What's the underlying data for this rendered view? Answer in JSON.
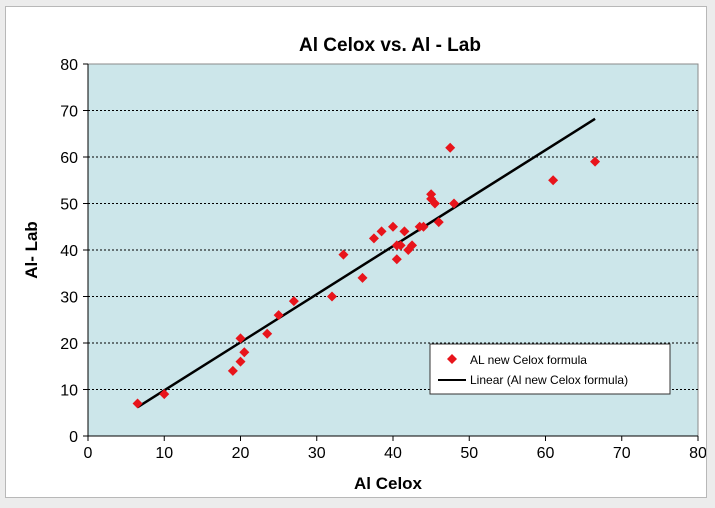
{
  "chart_data": {
    "type": "scatter",
    "title": "Al Celox vs. Al - Lab",
    "xlabel": "Al Celox",
    "ylabel": "Al- Lab",
    "xlim": [
      0,
      80
    ],
    "ylim": [
      0,
      80
    ],
    "xticks": [
      0,
      10,
      20,
      30,
      40,
      50,
      60,
      70,
      80
    ],
    "yticks": [
      0,
      10,
      20,
      30,
      40,
      50,
      60,
      70,
      80
    ],
    "grid": "horizontal dotted",
    "legend_position": "bottom-right",
    "plot_background": "#cce6ea",
    "series": [
      {
        "name": "AL new Celox formula",
        "marker": "diamond",
        "color": "#e8141b",
        "points": [
          [
            6.5,
            7
          ],
          [
            10,
            9
          ],
          [
            19,
            14
          ],
          [
            20,
            16
          ],
          [
            20.5,
            18
          ],
          [
            20,
            21
          ],
          [
            23.5,
            22
          ],
          [
            25,
            26
          ],
          [
            27,
            29
          ],
          [
            32,
            30
          ],
          [
            33.5,
            39
          ],
          [
            36,
            34
          ],
          [
            37.5,
            42.5
          ],
          [
            38.5,
            44
          ],
          [
            40,
            45
          ],
          [
            40.5,
            41
          ],
          [
            40.5,
            38
          ],
          [
            41,
            41
          ],
          [
            41.5,
            44
          ],
          [
            42,
            40
          ],
          [
            42.5,
            41
          ],
          [
            43.5,
            45
          ],
          [
            44,
            45
          ],
          [
            45,
            52
          ],
          [
            45,
            51
          ],
          [
            45.5,
            50
          ],
          [
            46,
            46
          ],
          [
            47.5,
            62
          ],
          [
            48,
            50
          ],
          [
            61,
            55
          ],
          [
            66.5,
            59
          ]
        ]
      },
      {
        "name": "Linear (Al new Celox formula)",
        "color": "#000000",
        "line": [
          [
            6.5,
            6.2
          ],
          [
            66.5,
            68.2
          ]
        ]
      }
    ]
  }
}
